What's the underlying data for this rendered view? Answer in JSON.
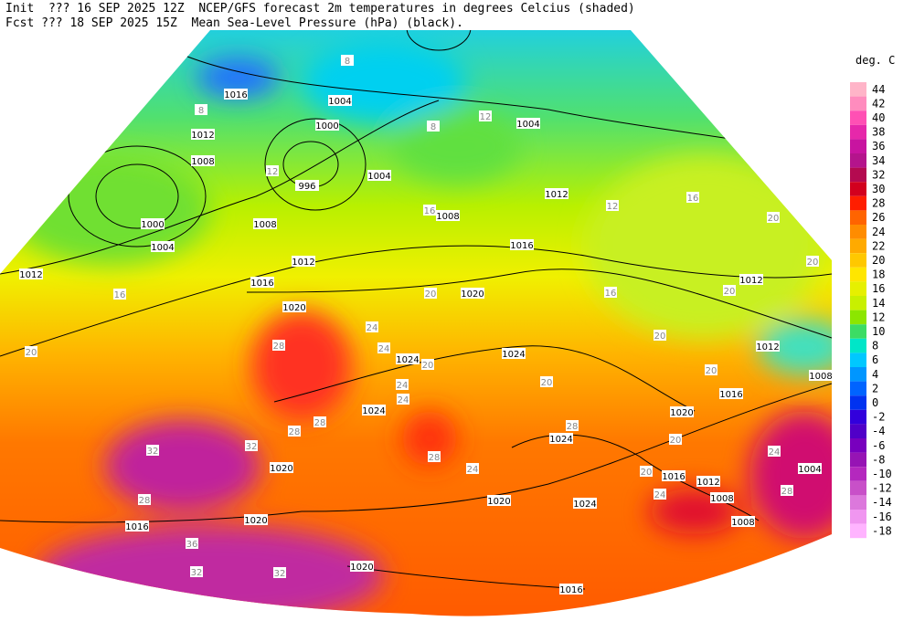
{
  "header": {
    "init": "Init  ??? 16 SEP 2025 12Z  NCEP/GFS forecast 2m temperatures in degrees Celcius (shaded)",
    "fcst": "Fcst ??? 18 SEP 2025 15Z  Mean Sea-Level Pressure (hPa) (black)."
  },
  "legend": {
    "title": "deg. C",
    "levels": [
      {
        "value": 44,
        "color": "#ffb4c8"
      },
      {
        "value": 42,
        "color": "#ff8cbe"
      },
      {
        "value": 40,
        "color": "#ff50b4"
      },
      {
        "value": 38,
        "color": "#e628aa"
      },
      {
        "value": 36,
        "color": "#c814a0"
      },
      {
        "value": 34,
        "color": "#b4148c"
      },
      {
        "value": 32,
        "color": "#b40a50"
      },
      {
        "value": 30,
        "color": "#d2001e"
      },
      {
        "value": 28,
        "color": "#ff1e00"
      },
      {
        "value": 26,
        "color": "#ff6400"
      },
      {
        "value": 24,
        "color": "#ff8c00"
      },
      {
        "value": 22,
        "color": "#ffaa00"
      },
      {
        "value": 20,
        "color": "#ffc800"
      },
      {
        "value": 18,
        "color": "#ffe600"
      },
      {
        "value": 16,
        "color": "#e6f000"
      },
      {
        "value": 14,
        "color": "#c8f000"
      },
      {
        "value": 12,
        "color": "#8ce600"
      },
      {
        "value": 10,
        "color": "#3cdc64"
      },
      {
        "value": 8,
        "color": "#00e6c8"
      },
      {
        "value": 6,
        "color": "#00c8ff"
      },
      {
        "value": 4,
        "color": "#0096ff"
      },
      {
        "value": 2,
        "color": "#0064ff"
      },
      {
        "value": 0,
        "color": "#0032f0"
      },
      {
        "value": -2,
        "color": "#3200dc"
      },
      {
        "value": -4,
        "color": "#5000c8"
      },
      {
        "value": -6,
        "color": "#7800be"
      },
      {
        "value": -8,
        "color": "#9614b4"
      },
      {
        "value": -10,
        "color": "#b428be"
      },
      {
        "value": -12,
        "color": "#c850c8"
      },
      {
        "value": -14,
        "color": "#dc78dc"
      },
      {
        "value": -16,
        "color": "#f096f0"
      },
      {
        "value": -18,
        "color": "#ffb4ff"
      }
    ]
  },
  "map": {
    "isobar_labels": [
      "1016",
      "1012",
      "1008",
      "1004",
      "1000",
      "996",
      "1004",
      "1000",
      "1004",
      "1012",
      "1008",
      "1012",
      "1016",
      "1020",
      "1008",
      "1016",
      "1012",
      "1004",
      "1020",
      "1024",
      "1024",
      "1024",
      "1020",
      "1020",
      "1016",
      "1020",
      "1020",
      "1024",
      "1016",
      "1020",
      "1016",
      "1012",
      "1008",
      "1008",
      "1004",
      "1012",
      "1012",
      "1008",
      "1016",
      "1024"
    ],
    "temperature_labels": [
      "8",
      "8",
      "12",
      "8",
      "12",
      "12",
      "16",
      "20",
      "20",
      "20",
      "16",
      "16",
      "20",
      "16",
      "20",
      "20",
      "24",
      "24",
      "20",
      "28",
      "20",
      "24",
      "24",
      "20",
      "28",
      "28",
      "32",
      "32",
      "28",
      "36",
      "32",
      "32",
      "28",
      "24",
      "20",
      "24",
      "28",
      "24",
      "20",
      "28"
    ]
  }
}
